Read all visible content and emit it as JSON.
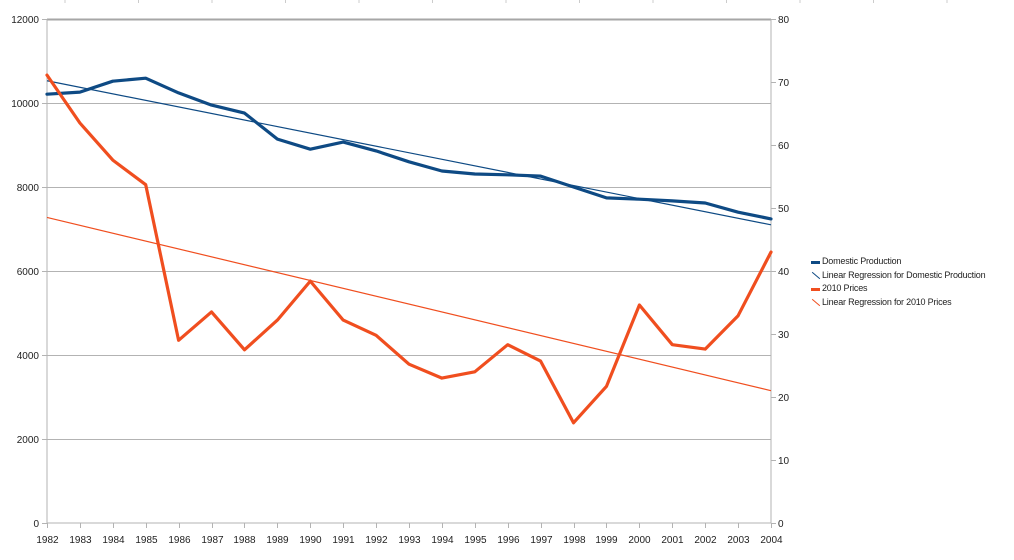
{
  "chart_data": {
    "type": "line",
    "title": "",
    "xlabel": "",
    "ylabel": "",
    "y2label": "",
    "x": [
      "1982",
      "1983",
      "1984",
      "1985",
      "1986",
      "1987",
      "1988",
      "1989",
      "1990",
      "1991",
      "1992",
      "1993",
      "1994",
      "1995",
      "1996",
      "1997",
      "1998",
      "1999",
      "2000",
      "2001",
      "2002",
      "2003",
      "2004"
    ],
    "ylim": [
      0,
      12000
    ],
    "y2lim": [
      0,
      80
    ],
    "yticks": [
      0,
      2000,
      4000,
      6000,
      8000,
      10000,
      12000
    ],
    "y2ticks": [
      0,
      10,
      20,
      30,
      40,
      50,
      60,
      70,
      80
    ],
    "grid": true,
    "legend_position": "right",
    "series": [
      {
        "name": "Domestic Production",
        "axis": "left",
        "kind": "line",
        "color": "#0e4a84",
        "values": [
          10210,
          10260,
          10520,
          10590,
          10240,
          9950,
          9760,
          9140,
          8900,
          9070,
          8860,
          8600,
          8380,
          8310,
          8290,
          8260,
          8000,
          7740,
          7710,
          7670,
          7620,
          7400,
          7240
        ]
      },
      {
        "name": "Linear Regression for Domestic Production",
        "axis": "left",
        "kind": "regression",
        "color": "#0e4a84",
        "endpoints": [
          10530,
          7100
        ]
      },
      {
        "name": "2010 Prices",
        "axis": "right",
        "kind": "line",
        "color": "#f04e1f",
        "values": [
          71.1,
          63.5,
          57.6,
          53.7,
          29.0,
          33.5,
          27.5,
          32.2,
          38.4,
          32.2,
          29.8,
          25.2,
          23.0,
          24.0,
          28.3,
          25.7,
          15.9,
          21.7,
          34.6,
          28.3,
          27.6,
          32.9,
          43.0
        ]
      },
      {
        "name": "Linear Regression for 2010 Prices",
        "axis": "right",
        "kind": "regression",
        "color": "#f04e1f",
        "endpoints": [
          48.5,
          21.0
        ]
      }
    ]
  }
}
